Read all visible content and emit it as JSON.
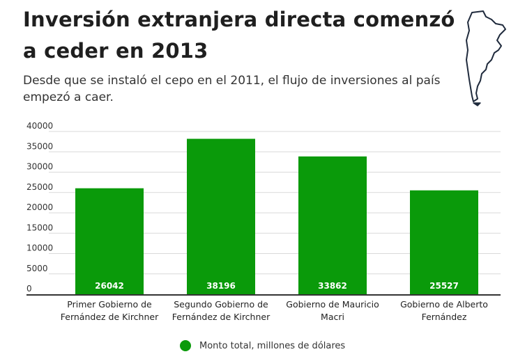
{
  "header": {
    "title": "Inversión extranjera directa comenzó a ceder en 2013",
    "subtitle": "Desde que se instaló el cepo en el 2011, el flujo de inversiones al país empezó a caer."
  },
  "map": {
    "icon": "argentina-map-icon"
  },
  "colors": {
    "bar": "#0a9a0a",
    "grid": "#d9d9d9",
    "axis": "#333333",
    "label": "#ffffff"
  },
  "chart_data": {
    "type": "bar",
    "title": "Inversión extranjera directa comenzó a ceder en 2013",
    "categories": [
      "Primer Gobierno de Fernández de Kirchner",
      "Segundo Gobierno de Fernández de Kirchner",
      "Gobierno de Mauricio Macri",
      "Gobierno de Alberto Fernández"
    ],
    "category_lines": [
      [
        "Primer Gobierno de",
        "Fernández de Kirchner"
      ],
      [
        "Segundo Gobierno de",
        "Fernández de Kirchner"
      ],
      [
        "Gobierno de Mauricio",
        "Macri"
      ],
      [
        "Gobierno de Alberto",
        "Fernández"
      ]
    ],
    "series": [
      {
        "name": "Monto total, millones de dólares",
        "values": [
          26042,
          38196,
          33862,
          25527
        ]
      }
    ],
    "data_labels": [
      "26042",
      "38196",
      "33862",
      "25527"
    ],
    "y_ticks": [
      0,
      5000,
      10000,
      15000,
      20000,
      25000,
      30000,
      35000,
      40000
    ],
    "ylim": [
      0,
      40000
    ],
    "xlabel": "",
    "ylabel": "",
    "grid": true,
    "legend_position": "bottom"
  },
  "legend": {
    "label": "Monto total, millones de dólares"
  }
}
